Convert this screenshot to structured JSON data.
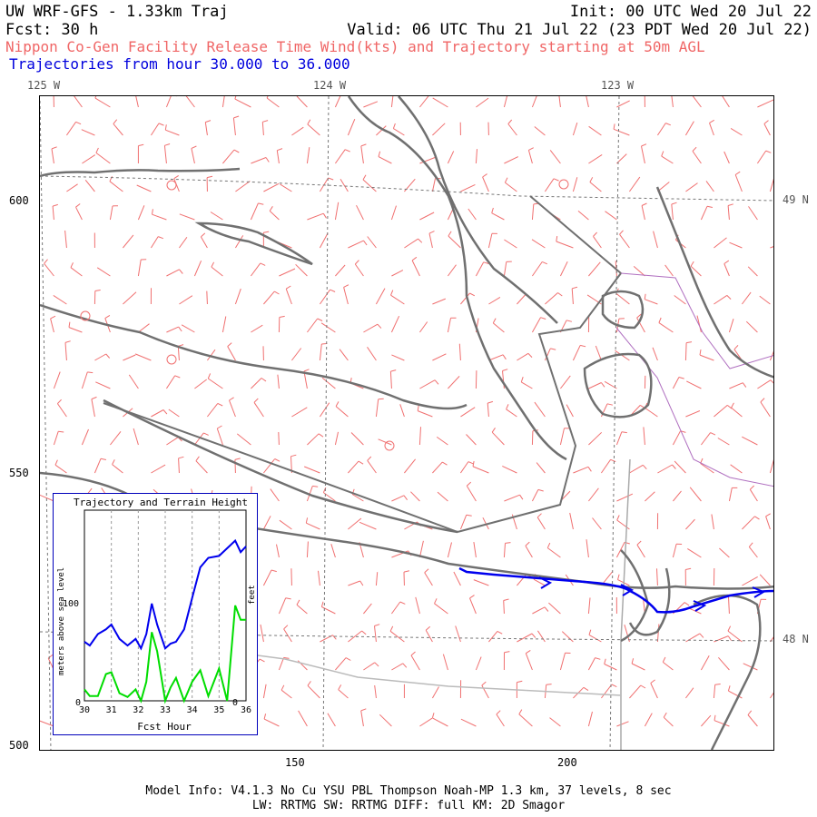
{
  "header": {
    "model_title": "UW WRF-GFS - 1.33km Traj",
    "init": "Init: 00 UTC Wed 20 Jul 22",
    "fcst": "Fcst:   30 h",
    "valid": "Valid: 06 UTC Thu 21 Jul 22 (23 PDT Wed 20 Jul 22)",
    "subtitle": "Nippon Co-Gen Facility Release Time Wind(kts) and Trajectory starting at 50m AGL",
    "traj_range": "Trajectories from hour  30.000 to  36.000"
  },
  "map": {
    "lon_labels": [
      "125 W",
      "124 W",
      "123 W"
    ],
    "lat_labels": [
      "49 N",
      "48 N"
    ],
    "y_ticks": [
      "600",
      "550",
      "500"
    ],
    "x_ticks": [
      "150",
      "200"
    ],
    "colors": {
      "coastline": "#707070",
      "wind_barb": "#f07070",
      "trajectory": "#0000ee",
      "graticule": "#666666",
      "border": "#aaaaaa",
      "county": "#b070c0"
    }
  },
  "inset": {
    "title": "Trajectory and Terrain Height",
    "y_label_left": "meters above sea level",
    "y_label_right": "feet",
    "x_label": "Fcst Hour",
    "x_ticks": [
      "30",
      "31",
      "32",
      "33",
      "34",
      "35",
      "36"
    ],
    "y_tick_100": "100",
    "y_tick_0_left": "0",
    "y_tick_0_right": "0"
  },
  "chart_data": {
    "type": "line",
    "title": "Trajectory and Terrain Height",
    "xlabel": "Fcst Hour",
    "ylabel": "meters above sea level",
    "xlim": [
      30,
      36
    ],
    "ylim": [
      0,
      200
    ],
    "x": [
      30.0,
      30.2,
      30.5,
      30.8,
      31.0,
      31.3,
      31.6,
      31.9,
      32.1,
      32.3,
      32.5,
      32.7,
      33.0,
      33.2,
      33.4,
      33.7,
      34.0,
      34.3,
      34.6,
      35.0,
      35.3,
      35.6,
      35.8,
      36.0
    ],
    "series": [
      {
        "color": "#0000ee",
        "values": [
          62,
          58,
          70,
          75,
          80,
          65,
          58,
          65,
          55,
          70,
          102,
          80,
          55,
          60,
          62,
          75,
          108,
          140,
          150,
          152,
          160,
          168,
          156,
          162
        ]
      },
      {
        "color": "#00dd00",
        "values": [
          12,
          5,
          5,
          28,
          30,
          8,
          4,
          12,
          0,
          20,
          72,
          52,
          0,
          14,
          24,
          0,
          20,
          32,
          5,
          34,
          0,
          100,
          85,
          85
        ]
      }
    ]
  },
  "footer": {
    "line1": "Model Info: V4.1.3    No Cu    YSU PBL  Thompson    Noah-MP   1.3 km,  37 levels,    8 sec",
    "line2": "LW: RRTMG SW: RRTMG    DIFF: full    KM: 2D Smagor"
  }
}
